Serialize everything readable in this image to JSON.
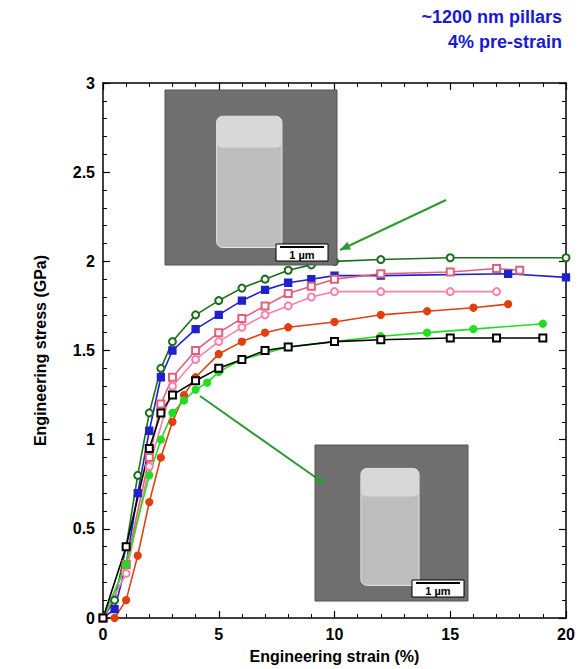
{
  "chart_data": {
    "type": "line",
    "annotations": [
      "~1200 nm pillars",
      "4% pre-strain"
    ],
    "insets": [
      {
        "scale_bar": "1 µm"
      },
      {
        "scale_bar": "1 µm"
      }
    ],
    "x_label": "Engineering strain (%)",
    "y_label": "Engineering stress (GPa)",
    "xlim": [
      0,
      20
    ],
    "xticks": [
      0,
      5,
      10,
      15,
      20
    ],
    "ylim": [
      0,
      3
    ],
    "yticks": [
      0,
      0.5,
      1,
      1.5,
      2,
      2.5,
      3
    ],
    "grid": false,
    "series": [
      {
        "color": "#1b6e1b",
        "marker": "open_circle",
        "x": [
          0,
          0.5,
          1,
          1.5,
          2,
          2.5,
          3,
          4,
          5,
          6,
          7,
          8,
          9,
          10,
          12,
          15,
          20
        ],
        "values": [
          0,
          0.1,
          0.4,
          0.8,
          1.15,
          1.4,
          1.55,
          1.7,
          1.78,
          1.85,
          1.9,
          1.95,
          1.98,
          2.0,
          2.01,
          2.02,
          2.02
        ]
      },
      {
        "color": "#2020cc",
        "marker": "square",
        "x": [
          0,
          0.5,
          1,
          1.5,
          2,
          2.5,
          3,
          4,
          5,
          6,
          7,
          8,
          9,
          10,
          12,
          17.5,
          20
        ],
        "values": [
          0,
          0.05,
          0.3,
          0.7,
          1.05,
          1.35,
          1.5,
          1.62,
          1.7,
          1.78,
          1.84,
          1.88,
          1.9,
          1.92,
          1.92,
          1.93,
          1.91
        ]
      },
      {
        "color": "#e0607a",
        "marker": "open_square",
        "x": [
          0,
          1,
          2,
          2.5,
          3,
          4,
          5,
          6,
          7,
          8,
          9,
          10,
          12,
          15,
          17,
          18
        ],
        "values": [
          0,
          0.3,
          0.9,
          1.2,
          1.35,
          1.5,
          1.6,
          1.68,
          1.75,
          1.82,
          1.86,
          1.9,
          1.93,
          1.94,
          1.96,
          1.95
        ]
      },
      {
        "color": "#ff7fa8",
        "marker": "open_circle",
        "x": [
          0,
          1,
          2,
          3,
          4,
          5,
          6,
          7,
          8,
          9,
          10,
          12,
          15,
          17
        ],
        "values": [
          0,
          0.25,
          0.85,
          1.3,
          1.45,
          1.55,
          1.63,
          1.7,
          1.75,
          1.8,
          1.83,
          1.83,
          1.83,
          1.83
        ]
      },
      {
        "color": "#e04010",
        "marker": "circle",
        "x": [
          0.5,
          1,
          1.5,
          2,
          2.5,
          3,
          3.5,
          4,
          5,
          6,
          7,
          8,
          10,
          12,
          14,
          16,
          17.5
        ],
        "values": [
          0,
          0.1,
          0.35,
          0.65,
          0.9,
          1.1,
          1.25,
          1.35,
          1.48,
          1.55,
          1.6,
          1.63,
          1.66,
          1.7,
          1.72,
          1.74,
          1.76
        ]
      },
      {
        "color": "#22dd22",
        "marker": "circle",
        "x": [
          0,
          1,
          2,
          2.5,
          3,
          3.5,
          4,
          4.5,
          5,
          6,
          8,
          10,
          12,
          14,
          16,
          19
        ],
        "values": [
          0,
          0.3,
          0.8,
          1.0,
          1.15,
          1.22,
          1.28,
          1.32,
          1.38,
          1.45,
          1.52,
          1.55,
          1.58,
          1.6,
          1.62,
          1.65
        ]
      },
      {
        "color": "#000000",
        "marker": "open_square",
        "x": [
          0,
          1,
          2,
          2.5,
          3,
          4,
          5,
          6,
          7,
          8,
          10,
          12,
          15,
          17,
          19
        ],
        "values": [
          0,
          0.4,
          0.95,
          1.15,
          1.25,
          1.33,
          1.4,
          1.45,
          1.5,
          1.52,
          1.55,
          1.56,
          1.57,
          1.57,
          1.57
        ]
      }
    ]
  }
}
